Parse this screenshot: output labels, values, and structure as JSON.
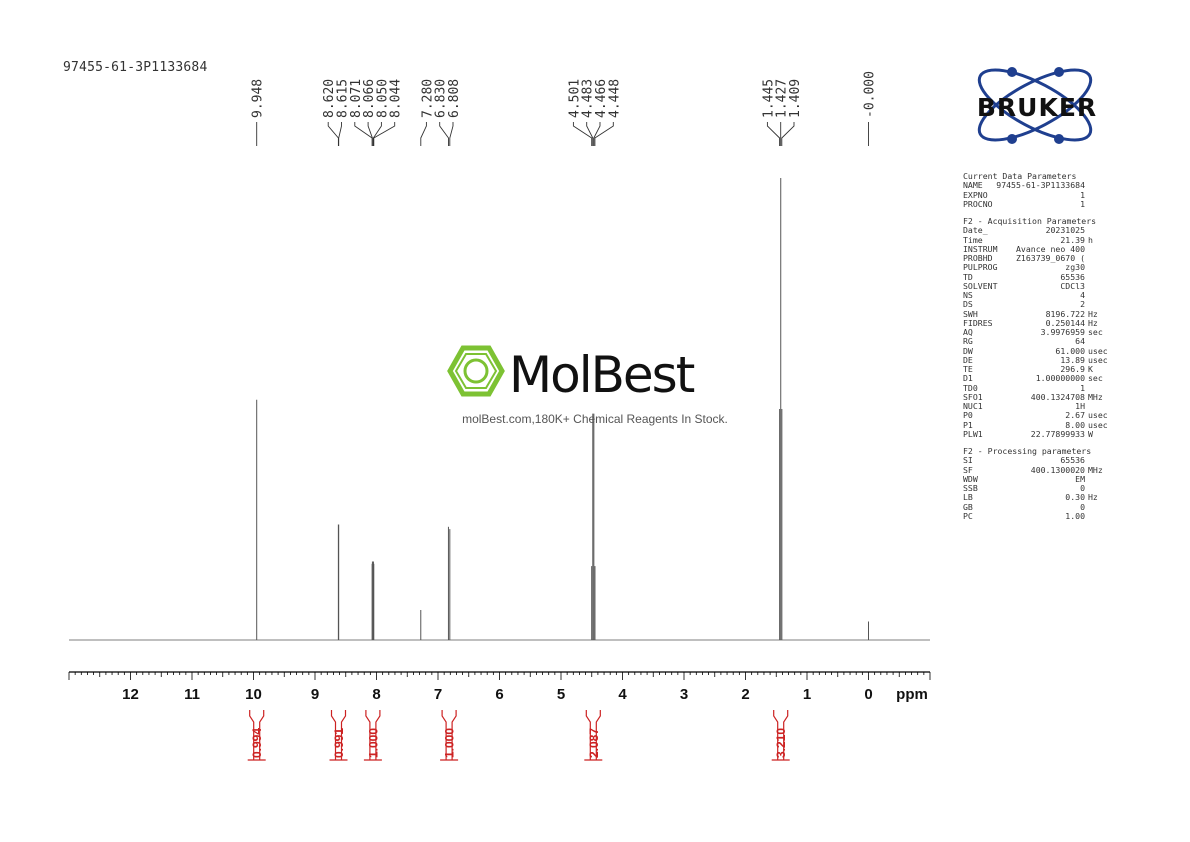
{
  "sample_id": "97455-61-3P1133684",
  "brand": "BRUKER",
  "watermark": {
    "name": "MolBest",
    "tagline": "molBest.com,180K+ Chemical Reagents In Stock."
  },
  "colors": {
    "spectrum": "#555555",
    "integral": "#cc2222",
    "axis": "#000000",
    "molbest_green": "#7dc233",
    "bruker_blue": "#1f3f8f"
  },
  "parameters": {
    "current": {
      "title": "Current Data Parameters",
      "rows": [
        {
          "key": "NAME",
          "value": "97455-61-3P1133684",
          "unit": ""
        },
        {
          "key": "EXPNO",
          "value": "1",
          "unit": ""
        },
        {
          "key": "PROCNO",
          "value": "1",
          "unit": ""
        }
      ]
    },
    "acquisition": {
      "title": "F2 - Acquisition Parameters",
      "rows": [
        {
          "key": "Date_",
          "value": "20231025",
          "unit": ""
        },
        {
          "key": "Time",
          "value": "21.39",
          "unit": "h"
        },
        {
          "key": "INSTRUM",
          "value": "Avance neo 400",
          "unit": ""
        },
        {
          "key": "PROBHD",
          "value": "Z163739_0670 (",
          "unit": ""
        },
        {
          "key": "PULPROG",
          "value": "zg30",
          "unit": ""
        },
        {
          "key": "TD",
          "value": "65536",
          "unit": ""
        },
        {
          "key": "SOLVENT",
          "value": "CDCl3",
          "unit": ""
        },
        {
          "key": "NS",
          "value": "4",
          "unit": ""
        },
        {
          "key": "DS",
          "value": "2",
          "unit": ""
        },
        {
          "key": "SWH",
          "value": "8196.722",
          "unit": "Hz"
        },
        {
          "key": "FIDRES",
          "value": "0.250144",
          "unit": "Hz"
        },
        {
          "key": "AQ",
          "value": "3.9976959",
          "unit": "sec"
        },
        {
          "key": "RG",
          "value": "64",
          "unit": ""
        },
        {
          "key": "DW",
          "value": "61.000",
          "unit": "usec"
        },
        {
          "key": "DE",
          "value": "13.89",
          "unit": "usec"
        },
        {
          "key": "TE",
          "value": "296.9",
          "unit": "K"
        },
        {
          "key": "D1",
          "value": "1.00000000",
          "unit": "sec"
        },
        {
          "key": "TD0",
          "value": "1",
          "unit": ""
        },
        {
          "key": "SFO1",
          "value": "400.1324708",
          "unit": "MHz"
        },
        {
          "key": "NUC1",
          "value": "1H",
          "unit": ""
        },
        {
          "key": "P0",
          "value": "2.67",
          "unit": "usec"
        },
        {
          "key": "P1",
          "value": "8.00",
          "unit": "usec"
        },
        {
          "key": "PLW1",
          "value": "22.77899933",
          "unit": "W"
        }
      ]
    },
    "processing": {
      "title": "F2 - Processing parameters",
      "rows": [
        {
          "key": "SI",
          "value": "65536",
          "unit": ""
        },
        {
          "key": "SF",
          "value": "400.1300020",
          "unit": "MHz"
        },
        {
          "key": "WDW",
          "value": "EM",
          "unit": ""
        },
        {
          "key": "SSB",
          "value": "0",
          "unit": ""
        },
        {
          "key": "LB",
          "value": "0.30",
          "unit": "Hz"
        },
        {
          "key": "GB",
          "value": "0",
          "unit": ""
        },
        {
          "key": "PC",
          "value": "1.00",
          "unit": ""
        }
      ]
    }
  },
  "chart_data": {
    "type": "line",
    "xlabel": "ppm",
    "xlim": [
      13.0,
      -1.0
    ],
    "x_reversed": true,
    "x_ticks": [
      12,
      11,
      10,
      9,
      8,
      7,
      6,
      5,
      4,
      3,
      2,
      1,
      0
    ],
    "ylim": [
      0,
      1.0
    ],
    "grid": false,
    "peaks": [
      {
        "ppm": 9.948,
        "height": 0.52
      },
      {
        "ppm": 8.62,
        "height": 0.25
      },
      {
        "ppm": 8.615,
        "height": 0.25
      },
      {
        "ppm": 8.071,
        "height": 0.165
      },
      {
        "ppm": 8.066,
        "height": 0.17
      },
      {
        "ppm": 8.05,
        "height": 0.17
      },
      {
        "ppm": 8.044,
        "height": 0.165
      },
      {
        "ppm": 7.28,
        "height": 0.065
      },
      {
        "ppm": 6.83,
        "height": 0.245
      },
      {
        "ppm": 6.808,
        "height": 0.24
      },
      {
        "ppm": 4.501,
        "height": 0.16
      },
      {
        "ppm": 4.483,
        "height": 0.49
      },
      {
        "ppm": 4.466,
        "height": 0.49
      },
      {
        "ppm": 4.448,
        "height": 0.16
      },
      {
        "ppm": 1.445,
        "height": 0.5
      },
      {
        "ppm": 1.427,
        "height": 1.0
      },
      {
        "ppm": 1.409,
        "height": 0.5
      },
      {
        "ppm": 0.0,
        "height": 0.04
      }
    ],
    "peak_labels": [
      {
        "text": "9.948",
        "ppm": 9.948
      },
      {
        "text": "8.620",
        "ppm": 8.62
      },
      {
        "text": "8.615",
        "ppm": 8.615
      },
      {
        "text": "8.071",
        "ppm": 8.071
      },
      {
        "text": "8.066",
        "ppm": 8.066
      },
      {
        "text": "8.050",
        "ppm": 8.05
      },
      {
        "text": "8.044",
        "ppm": 8.044
      },
      {
        "text": "7.280",
        "ppm": 7.28
      },
      {
        "text": "6.830",
        "ppm": 6.83
      },
      {
        "text": "6.808",
        "ppm": 6.808
      },
      {
        "text": "4.501",
        "ppm": 4.501
      },
      {
        "text": "4.483",
        "ppm": 4.483
      },
      {
        "text": "4.466",
        "ppm": 4.466
      },
      {
        "text": "4.448",
        "ppm": 4.448
      },
      {
        "text": "1.445",
        "ppm": 1.445
      },
      {
        "text": "1.427",
        "ppm": 1.427
      },
      {
        "text": "1.409",
        "ppm": 1.409
      },
      {
        "text": "-0.000",
        "ppm": 0.0
      }
    ],
    "integrals": [
      {
        "value": "0.994",
        "ppm": 9.948
      },
      {
        "value": "0.991",
        "ppm": 8.618
      },
      {
        "value": "1.000",
        "ppm": 8.058
      },
      {
        "value": "1.000",
        "ppm": 6.819
      },
      {
        "value": "2.087",
        "ppm": 4.475
      },
      {
        "value": "3.210",
        "ppm": 1.427
      }
    ]
  }
}
